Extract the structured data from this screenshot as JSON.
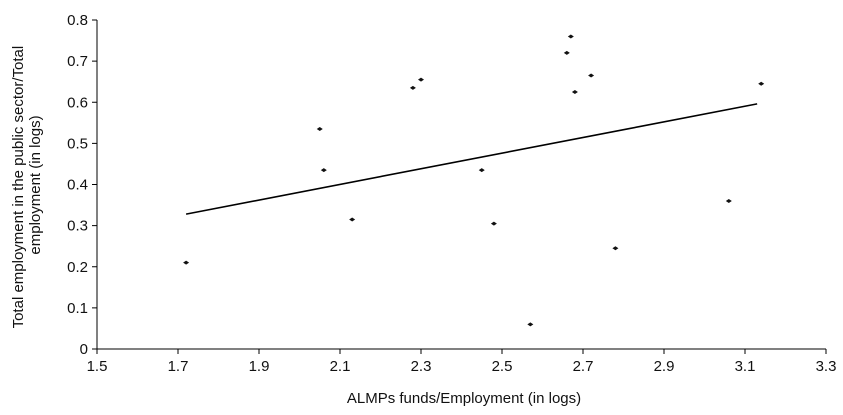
{
  "chart_data": {
    "type": "scatter",
    "title": "",
    "xlabel": "ALMPs funds/Employment (in logs)",
    "ylabel": "Total employment in the public sector/Total employment (in logs)",
    "ylabel_lines": [
      "Total employment in the public sector/Total",
      "employment (in logs)"
    ],
    "xlim": [
      1.5,
      3.3
    ],
    "ylim": [
      0,
      0.8
    ],
    "xticks": [
      1.5,
      1.7,
      1.9,
      2.1,
      2.3,
      2.5,
      2.7,
      2.9,
      3.1,
      3.3
    ],
    "yticks": [
      0,
      0.1,
      0.2,
      0.3,
      0.4,
      0.5,
      0.6,
      0.7,
      0.8
    ],
    "xtick_labels": [
      "1.5",
      "1.7",
      "1.9",
      "2.1",
      "2.3",
      "2.5",
      "2.7",
      "2.9",
      "3.1",
      "3.3"
    ],
    "ytick_labels": [
      "0",
      "0.1",
      "0.2",
      "0.3",
      "0.4",
      "0.5",
      "0.6",
      "0.7",
      "0.8"
    ],
    "grid": false,
    "legend": "none",
    "series": [
      {
        "points": [
          {
            "x": 1.72,
            "y": 0.21
          },
          {
            "x": 2.05,
            "y": 0.535
          },
          {
            "x": 2.06,
            "y": 0.435
          },
          {
            "x": 2.13,
            "y": 0.315
          },
          {
            "x": 2.28,
            "y": 0.635
          },
          {
            "x": 2.3,
            "y": 0.655
          },
          {
            "x": 2.45,
            "y": 0.435
          },
          {
            "x": 2.48,
            "y": 0.305
          },
          {
            "x": 2.57,
            "y": 0.06
          },
          {
            "x": 2.66,
            "y": 0.72
          },
          {
            "x": 2.67,
            "y": 0.76
          },
          {
            "x": 2.68,
            "y": 0.625
          },
          {
            "x": 2.72,
            "y": 0.665
          },
          {
            "x": 2.78,
            "y": 0.245
          },
          {
            "x": 3.06,
            "y": 0.36
          },
          {
            "x": 3.14,
            "y": 0.645
          }
        ]
      }
    ],
    "trendline": {
      "x": [
        1.72,
        3.13
      ],
      "y": [
        0.328,
        0.596
      ]
    },
    "colors": {
      "marker": "#111111",
      "line": "#000000",
      "axis": "#000000"
    }
  }
}
